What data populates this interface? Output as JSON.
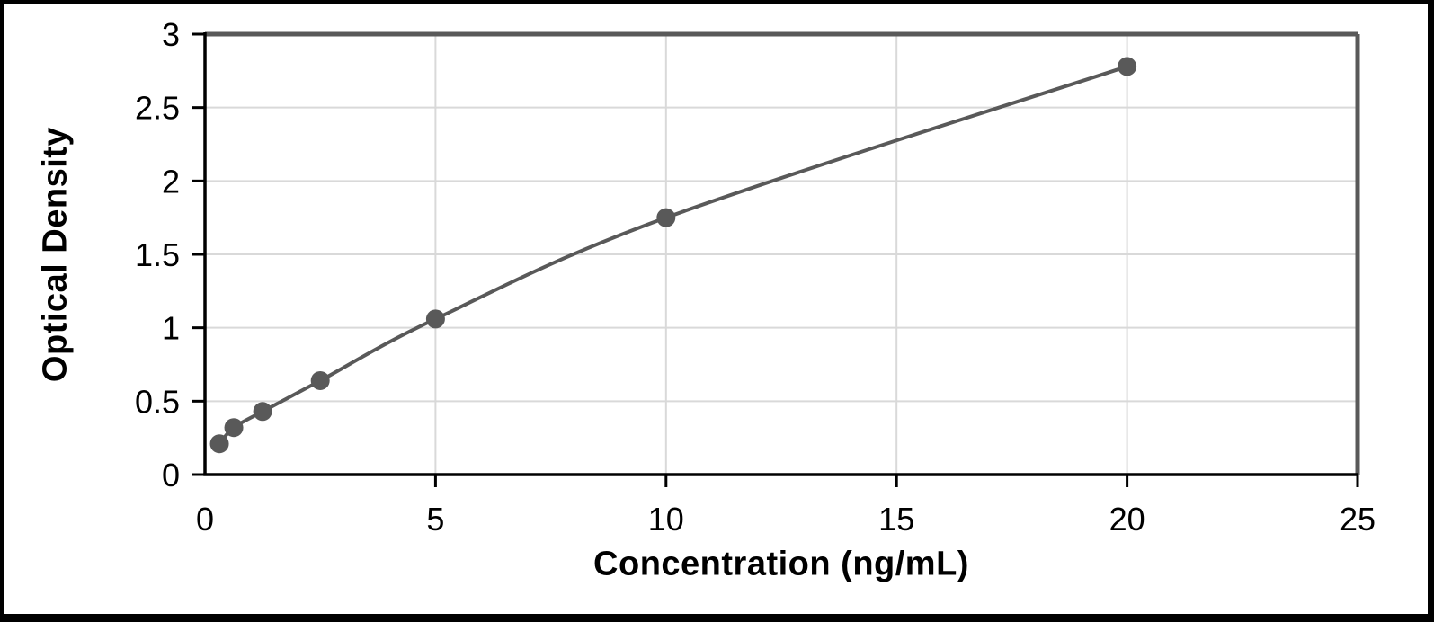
{
  "chart_data": {
    "type": "line",
    "title": "",
    "xlabel": "Concentration (ng/mL)",
    "ylabel": "Optical Density",
    "x": [
      0.313,
      0.625,
      1.25,
      2.5,
      5,
      10,
      20
    ],
    "y": [
      0.21,
      0.32,
      0.43,
      0.64,
      1.06,
      1.75,
      2.78
    ],
    "xlim": [
      0,
      25
    ],
    "ylim": [
      0,
      3
    ],
    "xticks": [
      0,
      5,
      10,
      15,
      20,
      25
    ],
    "yticks": [
      0,
      0.5,
      1,
      1.5,
      2,
      2.5,
      3
    ],
    "grid": true,
    "legend": "none",
    "marker": "circle",
    "colors": {
      "series": "#595959",
      "gridline": "#d9d9d9",
      "axis": "#000000",
      "plot_border": "#595959",
      "text": "#000000",
      "background": "#ffffff",
      "outer_border": "#000000"
    }
  }
}
